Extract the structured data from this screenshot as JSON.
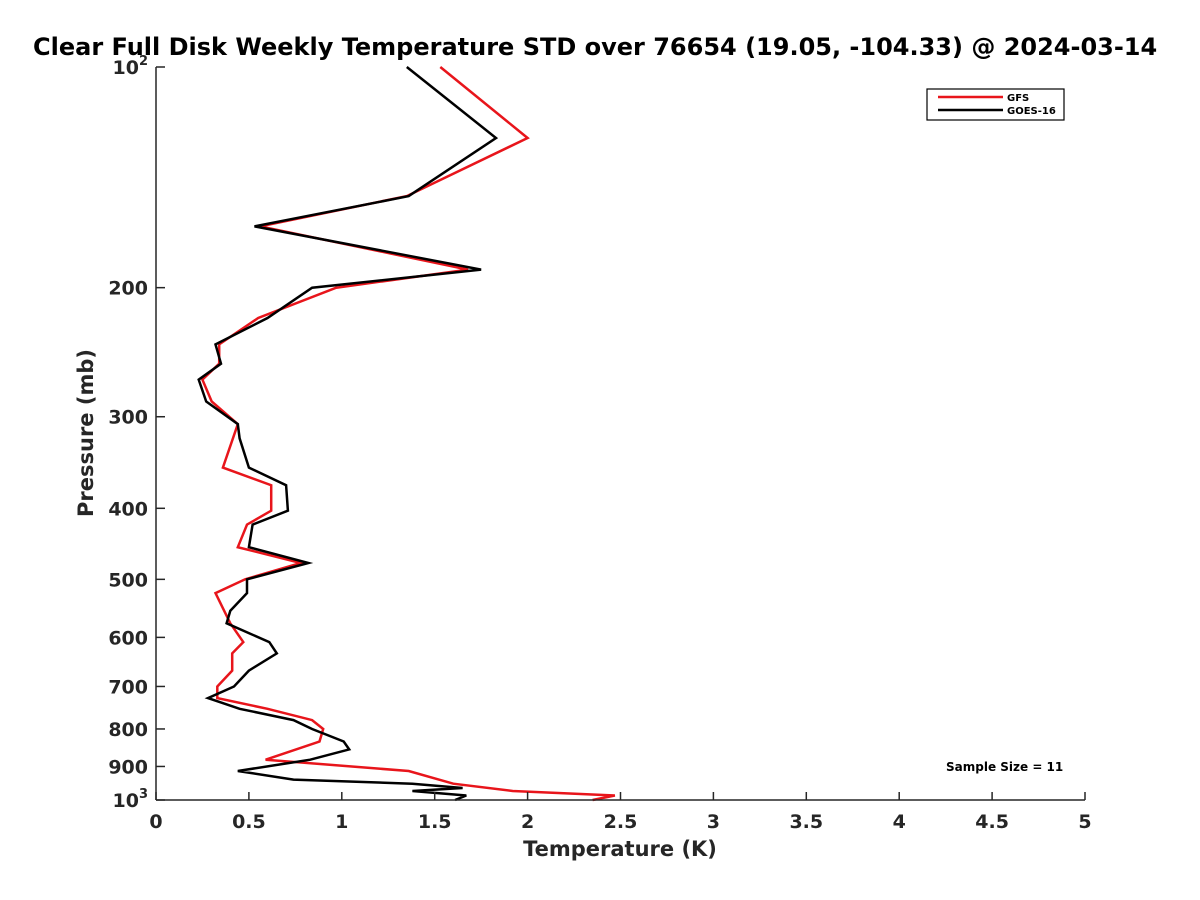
{
  "chart_data": {
    "type": "line",
    "title": "Clear Full Disk Weekly Temperature STD over 76654 (19.05, -104.33) @ 2024-03-14",
    "xlabel": "Temperature (K)",
    "ylabel": "Pressure (mb)",
    "xlim": [
      0,
      5
    ],
    "ylim": [
      100,
      1000
    ],
    "yscale": "log",
    "y_reversed": true,
    "x_ticks": [
      0,
      0.5,
      1,
      1.5,
      2,
      2.5,
      3,
      3.5,
      4,
      4.5,
      5
    ],
    "x_tick_labels": [
      "0",
      "0.5",
      "1",
      "1.5",
      "2",
      "2.5",
      "3",
      "3.5",
      "4",
      "4.5",
      "5"
    ],
    "y_ticks": [
      {
        "value": 100,
        "base": "10",
        "exp": "2"
      },
      {
        "value": 200,
        "label": "200"
      },
      {
        "value": 300,
        "label": "300"
      },
      {
        "value": 400,
        "label": "400"
      },
      {
        "value": 500,
        "label": "500"
      },
      {
        "value": 600,
        "label": "600"
      },
      {
        "value": 700,
        "label": "700"
      },
      {
        "value": 800,
        "label": "800"
      },
      {
        "value": 900,
        "label": "900"
      },
      {
        "value": 1000,
        "base": "10",
        "exp": "3"
      }
    ],
    "legend_position": "top-right",
    "annotation": "Sample Size = 11",
    "series": [
      {
        "name": "GFS",
        "color": "#e8151b",
        "points": [
          [
            1.53,
            100
          ],
          [
            2.0,
            125
          ],
          [
            1.35,
            150
          ],
          [
            0.56,
            165
          ],
          [
            1.68,
            189
          ],
          [
            0.97,
            200
          ],
          [
            0.55,
            220
          ],
          [
            0.34,
            239
          ],
          [
            0.34,
            254
          ],
          [
            0.25,
            267
          ],
          [
            0.3,
            286
          ],
          [
            0.44,
            307
          ],
          [
            0.36,
            352
          ],
          [
            0.62,
            372
          ],
          [
            0.62,
            403
          ],
          [
            0.49,
            421
          ],
          [
            0.44,
            452
          ],
          [
            0.78,
            475
          ],
          [
            0.48,
            500
          ],
          [
            0.32,
            522
          ],
          [
            0.4,
            574
          ],
          [
            0.47,
            609
          ],
          [
            0.41,
            631
          ],
          [
            0.41,
            666
          ],
          [
            0.33,
            700
          ],
          [
            0.33,
            726
          ],
          [
            0.6,
            751
          ],
          [
            0.84,
            778
          ],
          [
            0.9,
            800
          ],
          [
            0.88,
            832
          ],
          [
            0.59,
            881
          ],
          [
            1.36,
            913
          ],
          [
            1.6,
            950
          ],
          [
            1.92,
            972
          ],
          [
            2.47,
            986
          ],
          [
            2.35,
            1000
          ]
        ]
      },
      {
        "name": "GOES-16",
        "color": "#000000",
        "points": [
          [
            1.35,
            100
          ],
          [
            1.83,
            125
          ],
          [
            1.36,
            150
          ],
          [
            0.53,
            165
          ],
          [
            1.75,
            189
          ],
          [
            0.84,
            200
          ],
          [
            0.6,
            220
          ],
          [
            0.32,
            239
          ],
          [
            0.35,
            254
          ],
          [
            0.23,
            267
          ],
          [
            0.27,
            286
          ],
          [
            0.44,
            307
          ],
          [
            0.45,
            321
          ],
          [
            0.5,
            352
          ],
          [
            0.7,
            372
          ],
          [
            0.71,
            403
          ],
          [
            0.52,
            421
          ],
          [
            0.5,
            452
          ],
          [
            0.82,
            475
          ],
          [
            0.49,
            500
          ],
          [
            0.49,
            522
          ],
          [
            0.4,
            552
          ],
          [
            0.38,
            574
          ],
          [
            0.61,
            609
          ],
          [
            0.65,
            631
          ],
          [
            0.5,
            666
          ],
          [
            0.42,
            700
          ],
          [
            0.28,
            726
          ],
          [
            0.45,
            751
          ],
          [
            0.74,
            778
          ],
          [
            0.84,
            800
          ],
          [
            1.01,
            832
          ],
          [
            1.04,
            853
          ],
          [
            0.83,
            881
          ],
          [
            0.44,
            913
          ],
          [
            0.74,
            938
          ],
          [
            1.38,
            950
          ],
          [
            1.65,
            963
          ],
          [
            1.38,
            972
          ],
          [
            1.67,
            986
          ],
          [
            1.61,
            1000
          ]
        ]
      }
    ]
  }
}
